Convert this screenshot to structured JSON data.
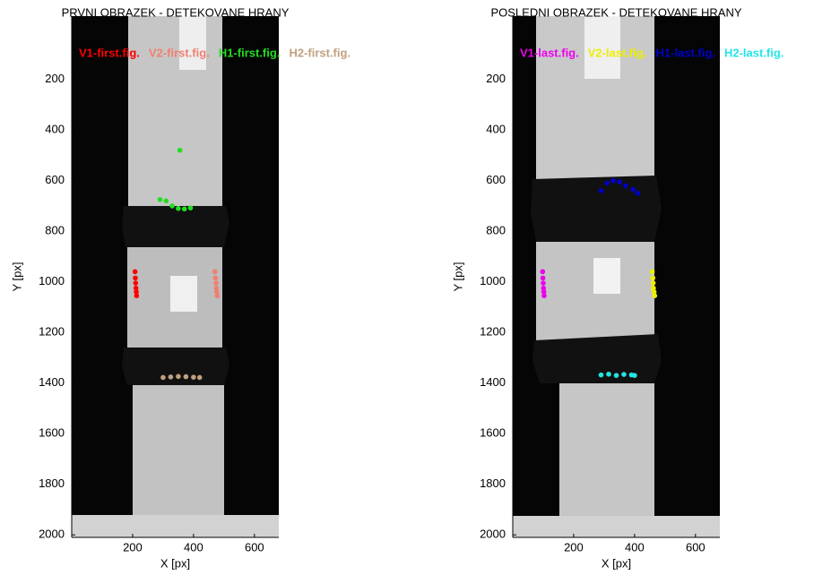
{
  "chart_data": [
    {
      "type": "scatter",
      "title": "PRVNI OBRAZEK - DETEKOVANE HRANY",
      "xlabel": "X [px]",
      "ylabel": "Y [px]",
      "xlim": [
        0,
        680
      ],
      "ylim": [
        -50,
        2010
      ],
      "y_reversed": true,
      "xticks": [
        200,
        400,
        600
      ],
      "yticks": [
        200,
        400,
        600,
        800,
        1000,
        1200,
        1400,
        1600,
        1800,
        2000
      ],
      "series": [
        {
          "name": "V1-first.fig.",
          "color": "#ff0000",
          "x": [
            208,
            209,
            210,
            211,
            212,
            213
          ],
          "y": [
            960,
            985,
            1005,
            1025,
            1040,
            1055
          ]
        },
        {
          "name": "V2-first.fig.",
          "color": "#f08070",
          "x": [
            470,
            472,
            474,
            475,
            476,
            478
          ],
          "y": [
            960,
            985,
            1005,
            1025,
            1040,
            1055
          ]
        },
        {
          "name": "H1-first.fig.",
          "color": "#22dd22",
          "x": [
            290,
            310,
            330,
            350,
            370,
            390,
            355
          ],
          "y": [
            675,
            680,
            700,
            710,
            712,
            708,
            480
          ]
        },
        {
          "name": "H2-first.fig.",
          "color": "#c0a080",
          "x": [
            300,
            325,
            350,
            375,
            400,
            420
          ],
          "y": [
            1378,
            1376,
            1374,
            1375,
            1377,
            1378
          ]
        }
      ]
    },
    {
      "type": "scatter",
      "title": "POSLEDNI OBRAZEK - DETEKOVANE HRANY",
      "xlabel": "X [px]",
      "ylabel": "Y [px]",
      "xlim": [
        0,
        680
      ],
      "ylim": [
        -50,
        2010
      ],
      "y_reversed": true,
      "xticks": [
        200,
        400,
        600
      ],
      "yticks": [
        200,
        400,
        600,
        800,
        1000,
        1200,
        1400,
        1600,
        1800,
        2000
      ],
      "series": [
        {
          "name": "V1-last.fig.",
          "color": "#ee00ee",
          "x": [
            98,
            99,
            100,
            101,
            102,
            103
          ],
          "y": [
            960,
            985,
            1005,
            1025,
            1040,
            1055
          ]
        },
        {
          "name": "V2-last.fig.",
          "color": "#eeee00",
          "x": [
            458,
            460,
            461,
            462,
            464,
            466
          ],
          "y": [
            960,
            985,
            1005,
            1025,
            1040,
            1055
          ]
        },
        {
          "name": "H1-last.fig.",
          "color": "#0000cc",
          "x": [
            290,
            310,
            330,
            350,
            370,
            395,
            410
          ],
          "y": [
            640,
            610,
            600,
            605,
            620,
            635,
            650
          ]
        },
        {
          "name": "H2-last.fig.",
          "color": "#22e5e5",
          "x": [
            290,
            315,
            340,
            365,
            390,
            400
          ],
          "y": [
            1368,
            1365,
            1370,
            1366,
            1368,
            1370
          ]
        }
      ]
    }
  ]
}
